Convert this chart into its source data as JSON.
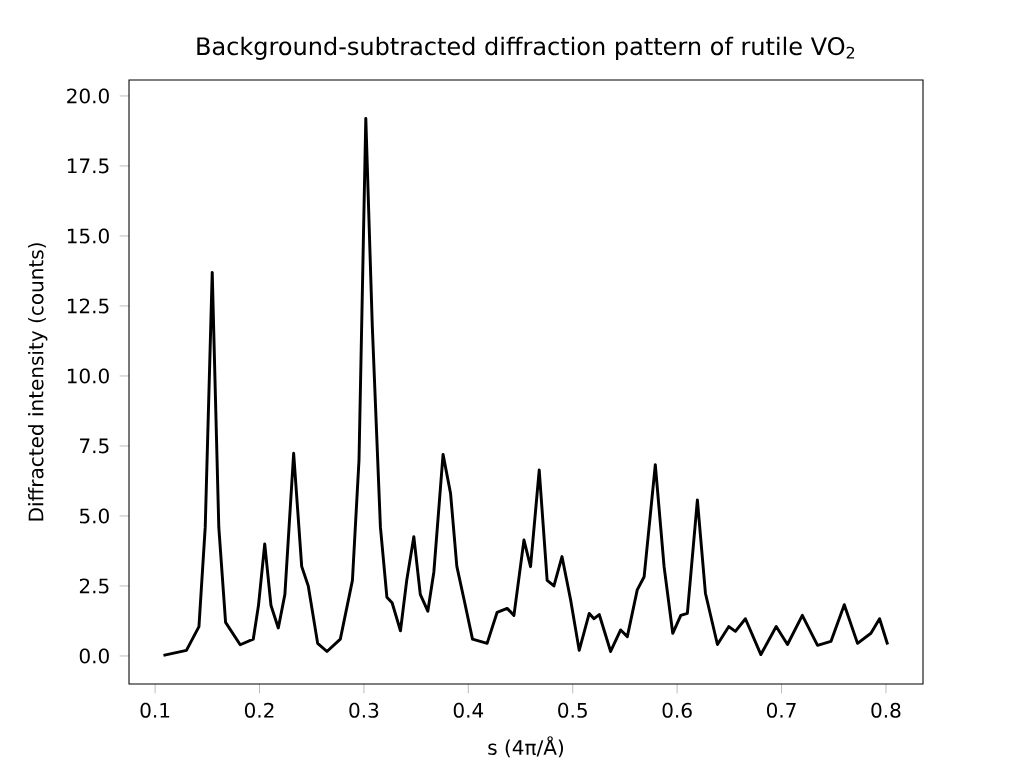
{
  "chart_data": {
    "type": "line",
    "title": "Background-subtracted diffraction pattern of rutile VO$_{2}$",
    "xlabel": "s (4π/Å)",
    "ylabel": "Diffracted intensity (counts)",
    "xlim": [
      0.075,
      0.8355
    ],
    "ylim": [
      -1.0,
      20.57
    ],
    "xticks": [
      0.1,
      0.2,
      0.3,
      0.4,
      0.5,
      0.6,
      0.7,
      0.8
    ],
    "yticks": [
      {
        "value": 0,
        "label": "0.0"
      },
      {
        "value": 2.5,
        "label": "2.5"
      },
      {
        "value": 5,
        "label": "5.0"
      },
      {
        "value": 7.5,
        "label": "7.5"
      },
      {
        "value": 10,
        "label": "10.0"
      },
      {
        "value": 12.5,
        "label": "12.5"
      },
      {
        "value": 15,
        "label": "15.0"
      },
      {
        "value": 17.5,
        "label": "17.5"
      },
      {
        "value": 20,
        "label": "20.0"
      }
    ],
    "grid": false,
    "marker": "none",
    "line_style": "solid",
    "series": [
      {
        "color": "#000000",
        "x": [
          0.108,
          0.13,
          0.142,
          0.148,
          0.1547,
          0.161,
          0.1675,
          0.1815,
          0.194,
          0.199,
          0.205,
          0.211,
          0.218,
          0.2243,
          0.2327,
          0.2404,
          0.2467,
          0.2557,
          0.2646,
          0.2774,
          0.289,
          0.2953,
          0.3018,
          0.308,
          0.3158,
          0.322,
          0.327,
          0.335,
          0.341,
          0.3478,
          0.354,
          0.3612,
          0.367,
          0.3758,
          0.383,
          0.389,
          0.396,
          0.404,
          0.418,
          0.4276,
          0.4372,
          0.4437,
          0.4533,
          0.4596,
          0.4679,
          0.4755,
          0.482,
          0.4897,
          0.498,
          0.5062,
          0.5158,
          0.5204,
          0.5254,
          0.5363,
          0.5459,
          0.5523,
          0.5618,
          0.5684,
          0.5791,
          0.5875,
          0.5958,
          0.6035,
          0.6098,
          0.6194,
          0.6271,
          0.6386,
          0.6495,
          0.6558,
          0.6654,
          0.6802,
          0.6949,
          0.7057,
          0.7199,
          0.7345,
          0.7473,
          0.7601,
          0.7728,
          0.7856,
          0.7939,
          0.8016
        ],
        "values": [
          0.02,
          0.2,
          1.05,
          4.6,
          13.7,
          4.6,
          1.2,
          0.4,
          0.6,
          1.8,
          4.0,
          1.8,
          1.0,
          2.2,
          7.24,
          3.2,
          2.5,
          0.45,
          0.16,
          0.6,
          2.7,
          7.0,
          19.2,
          11.8,
          4.6,
          2.1,
          1.9,
          0.9,
          2.7,
          4.26,
          2.2,
          1.6,
          3.0,
          7.2,
          5.8,
          3.2,
          2.0,
          0.6,
          0.45,
          1.56,
          1.7,
          1.45,
          4.14,
          3.19,
          6.64,
          2.7,
          2.5,
          3.55,
          2.0,
          0.2,
          1.52,
          1.33,
          1.48,
          0.16,
          0.93,
          0.69,
          2.36,
          2.83,
          6.83,
          3.19,
          0.81,
          1.45,
          1.52,
          5.57,
          2.24,
          0.41,
          1.05,
          0.88,
          1.33,
          0.05,
          1.05,
          0.41,
          1.45,
          0.38,
          0.52,
          1.83,
          0.45,
          0.81,
          1.33,
          0.41
        ]
      }
    ]
  }
}
